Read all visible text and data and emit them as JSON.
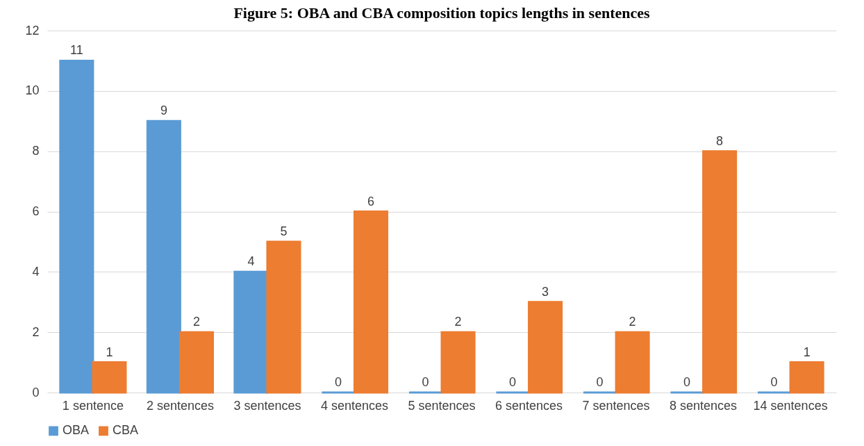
{
  "chart_data": {
    "type": "bar",
    "title": "Figure 5: OBA and CBA composition topics lengths in sentences",
    "categories": [
      "1 sentence",
      "2 sentences",
      "3 sentences",
      "4 sentences",
      "5 sentences",
      "6 sentences",
      "7 sentences",
      "8 sentences",
      "14 sentences"
    ],
    "series": [
      {
        "name": "OBA",
        "color": "#5b9bd5",
        "values": [
          11,
          9,
          4,
          0,
          0,
          0,
          0,
          0,
          0
        ]
      },
      {
        "name": "CBA",
        "color": "#ed7d31",
        "values": [
          1,
          2,
          5,
          6,
          2,
          3,
          2,
          8,
          1
        ]
      }
    ],
    "ylim": [
      0,
      12
    ],
    "yticks": [
      0,
      2,
      4,
      6,
      8,
      10,
      12
    ],
    "grid": "y",
    "legend": "bottom",
    "data_labels": true
  }
}
